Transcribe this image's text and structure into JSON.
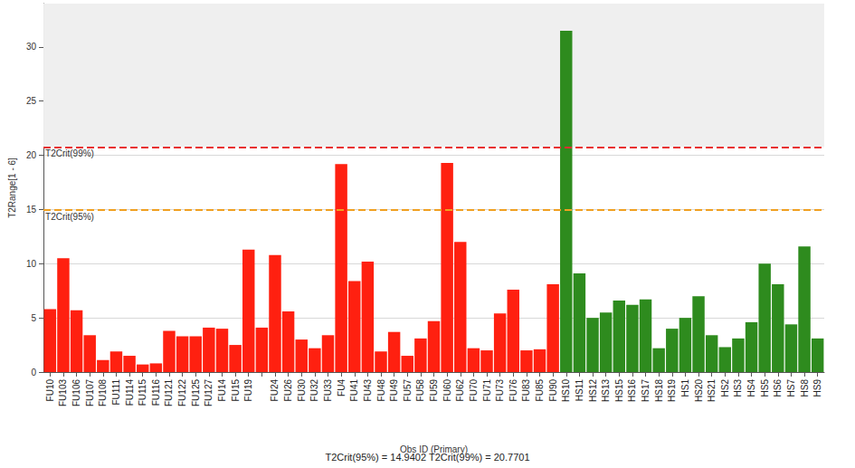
{
  "chart_data": {
    "type": "bar",
    "subtitle": "T2Crit(95%) = 14.9402 T2Crit(99%) = 20.7701",
    "x_label": "Obs ID (Primary)",
    "y_label": "T2Range[1 - 6]",
    "categories": [
      "FU10",
      "FU103",
      "FU106",
      "FU107",
      "FU108",
      "FU111",
      "FU114",
      "FU115",
      "FU116",
      "FU121",
      "FU122",
      "FU125",
      "FU127",
      "FU14",
      "FU15",
      "FU19",
      null,
      "FU24",
      "FU26",
      "FU30",
      "FU32",
      "FU33",
      "FU4",
      "FU41",
      "FU43",
      "FU48",
      "FU49",
      "FU57",
      "FU58",
      "FU59",
      "FU60",
      "FU62",
      "FU70",
      "FU71",
      "FU73",
      "FU76",
      "FU83",
      "FU85",
      "FU90",
      "HS10",
      "HS11",
      "HS12",
      "HS13",
      "HS15",
      "HS16",
      "HS17",
      "HS18",
      "HS19",
      "HS1",
      "HS20",
      "HS21",
      "HS2",
      "HS3",
      "HS4",
      "HS5",
      "HS6",
      "HS7",
      "HS8",
      "HS9"
    ],
    "values": [
      5.8,
      10.5,
      5.7,
      3.4,
      1.1,
      1.9,
      1.5,
      0.7,
      0.8,
      3.8,
      3.3,
      3.3,
      4.1,
      4.0,
      2.5,
      11.3,
      4.1,
      10.8,
      5.6,
      3.0,
      2.2,
      3.4,
      19.2,
      8.4,
      10.2,
      1.9,
      3.7,
      1.5,
      3.1,
      4.7,
      19.3,
      12.0,
      2.2,
      2.0,
      5.4,
      7.6,
      2.0,
      2.1,
      8.1,
      31.5,
      9.1,
      5.0,
      5.5,
      6.6,
      6.2,
      6.7,
      2.2,
      4.0,
      5.0,
      7.0,
      3.4,
      2.3,
      3.1,
      4.6,
      10.0,
      8.1,
      4.4,
      11.6,
      3.1
    ],
    "colors": [
      "#ff2010",
      "#ff2010",
      "#ff2010",
      "#ff2010",
      "#ff2010",
      "#ff2010",
      "#ff2010",
      "#ff2010",
      "#ff2010",
      "#ff2010",
      "#ff2010",
      "#ff2010",
      "#ff2010",
      "#ff2010",
      "#ff2010",
      "#ff2010",
      "#ff2010",
      "#ff2010",
      "#ff2010",
      "#ff2010",
      "#ff2010",
      "#ff2010",
      "#ff2010",
      "#ff2010",
      "#ff2010",
      "#ff2010",
      "#ff2010",
      "#ff2010",
      "#ff2010",
      "#ff2010",
      "#ff2010",
      "#ff2010",
      "#ff2010",
      "#ff2010",
      "#ff2010",
      "#ff2010",
      "#ff2010",
      "#ff2010",
      "#ff2010",
      "#2e8b1e",
      "#2e8b1e",
      "#2e8b1e",
      "#2e8b1e",
      "#2e8b1e",
      "#2e8b1e",
      "#2e8b1e",
      "#2e8b1e",
      "#2e8b1e",
      "#2e8b1e",
      "#2e8b1e",
      "#2e8b1e",
      "#2e8b1e",
      "#2e8b1e",
      "#2e8b1e",
      "#2e8b1e",
      "#2e8b1e",
      "#2e8b1e",
      "#2e8b1e",
      "#2e8b1e"
    ],
    "reference_lines": [
      {
        "value": 14.9402,
        "label": "T2Crit(95%)",
        "color": "#f0a020"
      },
      {
        "value": 20.7701,
        "label": "T2Crit(99%)",
        "color": "#e83030"
      }
    ],
    "ylim": [
      0,
      34
    ],
    "yticks": [
      0,
      5,
      10,
      15,
      20,
      25,
      30
    ],
    "grid": true
  }
}
